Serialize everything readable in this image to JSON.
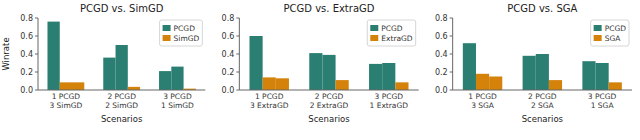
{
  "chart_data": [
    {
      "type": "bar",
      "title": "PCGD vs. SimGD",
      "x_label": "Scenarios",
      "y_label": "Winrate",
      "categories": [
        "1 PCGD\n3 SimGD",
        "2 PCGD\n2 SimGD",
        "3 PCGD\n1 SimGD"
      ],
      "series": [
        {
          "name": "PCGD",
          "color": "#2a7f72",
          "values": [
            0.76,
            0.36,
            0.21
          ]
        },
        {
          "colors": [
            "#d4820a",
            "#2a7f72",
            "#2a7f72"
          ],
          "values": [
            0.085,
            0.5,
            0.26
          ]
        },
        {
          "name": "SimGD",
          "color": "#d4820a",
          "values": [
            0.085,
            0.035,
            0.015
          ]
        }
      ],
      "ylim": [
        0.0,
        0.8
      ],
      "yticks": [
        {
          "value": 0.0,
          "label": "0.0"
        },
        0.2,
        0.4,
        0.6,
        0.8
      ],
      "grid": false,
      "legend": "upper right"
    },
    {
      "type": "bar",
      "title": "PCGD vs. ExtraGD",
      "x_label": "Scenarios",
      "categories": [
        "1 PCGD\n3 ExtraGD",
        "2 PCGD\n2 ExtraGD",
        "3 PCGD\n1 ExtraGD"
      ],
      "series": [
        {
          "name": "PCGD",
          "color": "#2a7f72",
          "values": [
            0.6,
            0.41,
            0.29
          ]
        },
        {
          "colors": [
            "#d4820a",
            "#2a7f72",
            "#2a7f72"
          ],
          "values": [
            0.14,
            0.39,
            0.3
          ]
        },
        {
          "name": "ExtraGD",
          "color": "#d4820a",
          "values": [
            0.13,
            0.11,
            0.085
          ]
        }
      ],
      "ylim": [
        0.0,
        0.8
      ],
      "yticks": [
        {
          "value": 0.0,
          "label": "0.0"
        },
        0.2,
        0.4,
        0.6,
        0.8
      ],
      "grid": false,
      "legend": "upper right"
    },
    {
      "type": "bar",
      "title": "PCGD vs. SGA",
      "x_label": "Scenarios",
      "categories": [
        "1 PCGD\n3 SGA",
        "2 PCGD\n2 SGA",
        "3 PCGD\n1 SGA"
      ],
      "series": [
        {
          "name": "PCGD",
          "color": "#2a7f72",
          "values": [
            0.52,
            0.38,
            0.32
          ]
        },
        {
          "colors": [
            "#d4820a",
            "#2a7f72",
            "#2a7f72"
          ],
          "values": [
            0.18,
            0.4,
            0.3
          ]
        },
        {
          "name": "SGA",
          "color": "#d4820a",
          "values": [
            0.15,
            0.11,
            0.085
          ]
        }
      ],
      "ylim": [
        0.0,
        0.8
      ],
      "yticks": [
        {
          "value": 0.0,
          "label": "0.0"
        },
        0.2,
        0.4,
        0.6,
        0.8
      ],
      "grid": false,
      "legend": "upper right"
    }
  ]
}
